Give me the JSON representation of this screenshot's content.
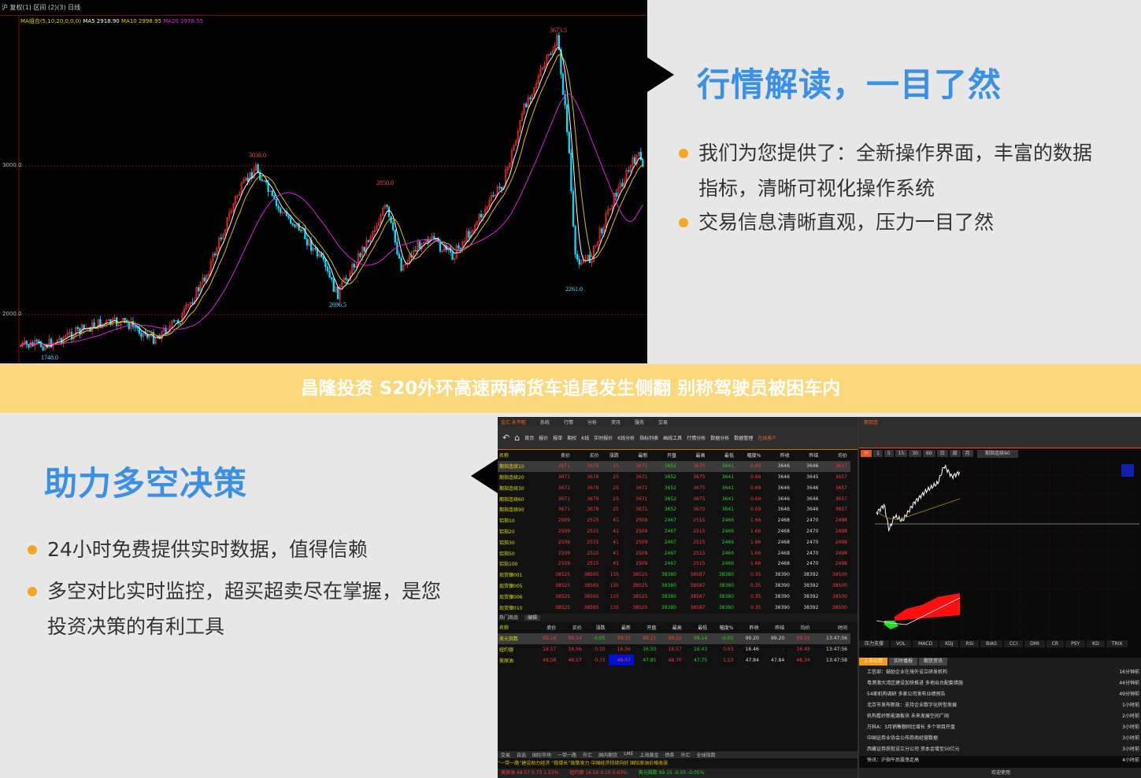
{
  "top_chart": {
    "header": "沪 复权(1) 区间 (2)(3) 日线",
    "ma_legend": {
      "label": "MA组合(5,10,20,0,0,0)",
      "ma5": "MA5 2918.90",
      "ma10": "MA10 2998.95",
      "ma20": "MA20 2978.55"
    },
    "y_ticks": [
      "3000.0",
      "2000.0"
    ],
    "annotations": {
      "peak_high": "3673.5",
      "peak1": "3038.0",
      "peak2": "2850.0",
      "low1": "2696.5",
      "low2": "2261.0",
      "low0": "1748.0"
    },
    "colors": {
      "up": "#ff3030",
      "down": "#00e0ff",
      "ma5": "#ffffff",
      "ma10": "#e0c000",
      "ma20": "#e020e0"
    }
  },
  "section1": {
    "title": "行情解读，一目了然",
    "bullets": [
      "我们为您提供了：全新操作界面，丰富的数据指标，清晰可视化操作系统",
      "交易信息清晰直观，压力一目了然"
    ],
    "bullet_line1a": "我们为您提供了：全新操作界面，丰富的数据",
    "bullet_line1b": "指标，清晰可视化操作系统"
  },
  "banner": "昌隆投资 S20外环高速两辆货车追尾发生侧翻 别称驾驶员被困车内",
  "section2": {
    "title": "助力多空决策",
    "bullet1": "24小时免费提供实时数据，值得信赖",
    "bullet2a": "多空对比实时监控，超买超卖尽在掌握，是您",
    "bullet2b": "投资决策的有利工具"
  },
  "app": {
    "logo": "金汇 永不眠",
    "menu": [
      "系统",
      "行情",
      "分析",
      "资讯",
      "服务",
      "交易"
    ],
    "toolbar": [
      "首页",
      "报价",
      "报单",
      "期权",
      "K线",
      "实时报价",
      "K线分析",
      "指标列表",
      "画线工具",
      "行情分析",
      "数据分析",
      "数据管理",
      "在线客户"
    ],
    "columns": [
      "名称",
      "卖价",
      "买价",
      "涨跌",
      "最新",
      "开盘",
      "最高",
      "最低",
      "幅度%",
      "昨收",
      "昨结",
      "均价"
    ],
    "rows": [
      [
        "期指连续10",
        "3671",
        "3679",
        "25",
        "3671",
        "3652",
        "3675",
        "3641",
        "0.69",
        "3646",
        "3646",
        "3657"
      ],
      [
        "期指连续20",
        "3671",
        "3679",
        "25",
        "3671",
        "3652",
        "3675",
        "3641",
        "0.69",
        "3646",
        "3645",
        "3657"
      ],
      [
        "期指连续30",
        "3671",
        "3679",
        "25",
        "3671",
        "3652",
        "3675",
        "3641",
        "0.69",
        "3646",
        "3646",
        "3657"
      ],
      [
        "期指连续60",
        "3671",
        "3679",
        "25",
        "3671",
        "3652",
        "3675",
        "3641",
        "0.69",
        "3646",
        "3646",
        "3657"
      ],
      [
        "期指连续90",
        "3671",
        "3679",
        "25",
        "3671",
        "3652",
        "3675",
        "3641",
        "0.69",
        "3646",
        "3646",
        "3657"
      ],
      [
        "铝指10",
        "2509",
        "2515",
        "41",
        "2509",
        "2467",
        "2515",
        "2466",
        "1.66",
        "2468",
        "2470",
        "2498"
      ],
      [
        "铝指20",
        "2509",
        "2515",
        "41",
        "2509",
        "2467",
        "2515",
        "2466",
        "1.66",
        "2468",
        "2470",
        "2498"
      ],
      [
        "铝指30",
        "2509",
        "2515",
        "41",
        "2509",
        "2467",
        "2515",
        "2466",
        "1.66",
        "2468",
        "2470",
        "2498"
      ],
      [
        "铝指50",
        "2509",
        "2515",
        "41",
        "2509",
        "2467",
        "2515",
        "2466",
        "1.66",
        "2468",
        "2470",
        "2498"
      ],
      [
        "铝指100",
        "2509",
        "2515",
        "41",
        "2509",
        "2467",
        "2515",
        "2466",
        "1.66",
        "2468",
        "2470",
        "2498"
      ],
      [
        "现货镍001",
        "38525",
        "38565",
        "135",
        "38525",
        "38380",
        "38587",
        "38380",
        "0.35",
        "38390",
        "38392",
        "38500"
      ],
      [
        "现货镍005",
        "38525",
        "38565",
        "135",
        "38525",
        "38380",
        "38587",
        "38380",
        "0.35",
        "38390",
        "38392",
        "38500"
      ],
      [
        "现货镍006",
        "38525",
        "38565",
        "135",
        "38525",
        "38380",
        "38587",
        "38380",
        "0.35",
        "38390",
        "38392",
        "38500"
      ],
      [
        "现货镍010",
        "38525",
        "38565",
        "135",
        "38525",
        "38380",
        "38587",
        "38380",
        "0.35",
        "38390",
        "38392",
        "38500"
      ]
    ],
    "hot_label": "热门商品",
    "hot_edit": "编辑",
    "hot_columns": [
      "名称",
      "卖价",
      "买价",
      "涨跌",
      "最新",
      "开盘",
      "最高",
      "最低",
      "幅度%",
      "昨收",
      "昨结",
      "均价",
      "时间"
    ],
    "hot_rows": [
      [
        "美元指数",
        "99.16",
        "99.14",
        "-0.05",
        "99.15",
        "99.21",
        "99.26",
        "99.14",
        "-0.05",
        "99.20",
        "99.20",
        "99.19",
        "13:47:56"
      ],
      [
        "纽约银",
        "16.57",
        "16.56",
        "0.10",
        "16.56",
        "16.50",
        "16.57",
        "16.43",
        "0.63",
        "16.46",
        "-",
        "16.49",
        "13:47:56"
      ],
      [
        "美原油",
        "48.58",
        "48.57",
        "0.73",
        "48.57",
        "47.85",
        "48.70",
        "47.75",
        "1.53",
        "47.84",
        "47.84",
        "48.34",
        "13:47:58"
      ]
    ],
    "bottom_tabs": [
      "交易",
      "自选",
      "国际市场",
      "一带一路",
      "外汇",
      "国内期货",
      "LME",
      "上海黄金",
      "债券",
      "外汇",
      "全球指数"
    ],
    "ticker": "“一带一路”建设助力经济   “稳增长”政策发力 中国经济持续向好   国际原油价格收涨",
    "status": [
      "美原油 48.57 0.73 1.53%",
      "纽约银 16.56 0.10 0.63%",
      "美元指数 99.15 -0.05 -0.05%"
    ],
    "right": {
      "title": "期指连",
      "periods": [
        "分",
        "1",
        "5",
        "15",
        "30",
        "60",
        "日",
        "周",
        "月"
      ],
      "symbol": "期指连续90",
      "indicators": [
        "压力支撑",
        "VOL",
        "MACD",
        "KDJ",
        "RSI",
        "BIAS",
        "CCI",
        "DMI",
        "CR",
        "PSY",
        "KD",
        "TRIX"
      ],
      "news_tabs": [
        "上市公司",
        "实时播报",
        "期货资讯"
      ],
      "news": [
        [
          "工信部：鼓励企业在境外设立研发机构",
          "16分钟前"
        ],
        [
          "粤港澳大湾区建设加快推进 多地出台配套措施",
          "44分钟前"
        ],
        [
          "54家机构调研 多家公司发布业绩预告",
          "49分钟前"
        ],
        [
          "北京市发布新政：支持企业数字化转型发展",
          "1小时前"
        ],
        [
          "机构看好新能源板块 未来发展空间广阔",
          "2小时前"
        ],
        [
          "万科A：3月销售额同比增长 多个项目开盘",
          "3小时前"
        ],
        [
          "中国证券业协会公布券商经营数据",
          "3小时前"
        ],
        [
          "西藏证券获批设立分公司 资本金增至50亿元",
          "3小时前"
        ],
        [
          "快讯：沪指午后震荡走高",
          "4小时前"
        ]
      ],
      "footer": "欢迎使用"
    }
  }
}
